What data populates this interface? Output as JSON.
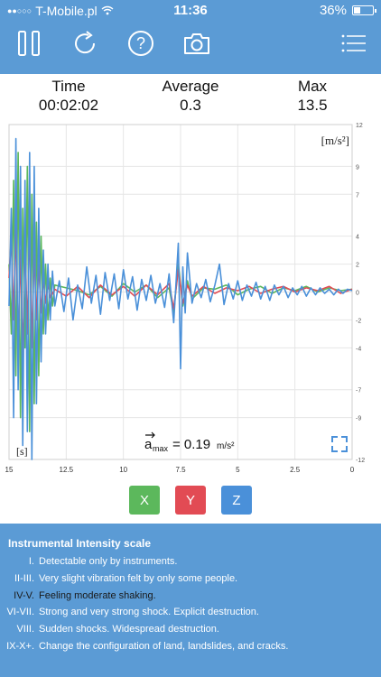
{
  "status_bar": {
    "carrier": "T-Mobile.pl",
    "time": "11:36",
    "battery": "36%",
    "battery_level": 0.36
  },
  "toolbar": {
    "icons": [
      "pause-icon",
      "refresh-icon",
      "help-icon",
      "camera-icon",
      "menu-icon"
    ]
  },
  "stats": {
    "time_label": "Time",
    "time_value": "00:02:02",
    "average_label": "Average",
    "average_value": "0.3",
    "max_label": "Max",
    "max_value": "13.5"
  },
  "chart_data": {
    "type": "line",
    "unit_y": "[m/s²]",
    "unit_x": "[s]",
    "xlim": [
      15,
      0
    ],
    "ylim": [
      -12,
      12
    ],
    "x_ticks": [
      "15",
      "12.5",
      "10",
      "7.5",
      "5",
      "2.5",
      "0"
    ],
    "y_ticks": [
      "12",
      "9",
      "7",
      "4",
      "2",
      "0",
      "-2",
      "-4",
      "-7",
      "-9",
      "-12"
    ],
    "amax_label": "a",
    "amax_sub": "max",
    "amax_value": "= 0.19",
    "amax_unit": "m/s²",
    "series": [
      {
        "name": "X",
        "color": "#5cb85c",
        "values": [
          [
            15,
            2
          ],
          [
            14.9,
            -3
          ],
          [
            14.8,
            8
          ],
          [
            14.7,
            -6
          ],
          [
            14.6,
            10
          ],
          [
            14.5,
            -9
          ],
          [
            14.4,
            6
          ],
          [
            14.3,
            -4
          ],
          [
            14.2,
            9
          ],
          [
            14.1,
            -10
          ],
          [
            14,
            7
          ],
          [
            13.9,
            -8
          ],
          [
            13.8,
            5
          ],
          [
            13.7,
            -6
          ],
          [
            13.6,
            4
          ],
          [
            13.5,
            -3
          ],
          [
            13.4,
            2
          ],
          [
            13.3,
            -2
          ],
          [
            13.2,
            1
          ],
          [
            13.1,
            -1
          ],
          [
            13,
            0.5
          ],
          [
            12.5,
            0.3
          ],
          [
            12,
            0.1
          ],
          [
            11.5,
            -0.2
          ],
          [
            11,
            0.4
          ],
          [
            10.5,
            -0.3
          ],
          [
            10,
            0.6
          ],
          [
            9.5,
            0
          ],
          [
            9,
            0.5
          ],
          [
            8.5,
            -0.4
          ],
          [
            8,
            0.3
          ],
          [
            7.8,
            -1.5
          ],
          [
            7.6,
            2
          ],
          [
            7.4,
            -1
          ],
          [
            7.2,
            0.8
          ],
          [
            7,
            -0.5
          ],
          [
            6.5,
            0.3
          ],
          [
            6,
            0.2
          ],
          [
            5.5,
            0.5
          ],
          [
            5,
            -0.2
          ],
          [
            4.5,
            0.2
          ],
          [
            4,
            0.4
          ],
          [
            3.5,
            -0.1
          ],
          [
            3,
            0.3
          ],
          [
            2.5,
            0.1
          ],
          [
            2,
            0.4
          ],
          [
            1.5,
            0
          ],
          [
            1,
            0.3
          ],
          [
            0.5,
            0.1
          ],
          [
            0,
            0.2
          ]
        ]
      },
      {
        "name": "Y",
        "color": "#e24b54",
        "values": [
          [
            15,
            1
          ],
          [
            14.9,
            4
          ],
          [
            14.8,
            -2
          ],
          [
            14.7,
            5
          ],
          [
            14.6,
            -4
          ],
          [
            14.5,
            3
          ],
          [
            14.4,
            -5
          ],
          [
            14.3,
            4
          ],
          [
            14.2,
            -3
          ],
          [
            14.1,
            5
          ],
          [
            14,
            -4
          ],
          [
            13.9,
            3
          ],
          [
            13.8,
            -2
          ],
          [
            13.7,
            2
          ],
          [
            13.6,
            -1.5
          ],
          [
            13.5,
            1
          ],
          [
            13.4,
            -0.8
          ],
          [
            13.3,
            0.6
          ],
          [
            13.2,
            -0.4
          ],
          [
            13,
            0.2
          ],
          [
            12.5,
            -0.3
          ],
          [
            12,
            0.4
          ],
          [
            11.5,
            -0.4
          ],
          [
            11,
            0.5
          ],
          [
            10.5,
            -0.2
          ],
          [
            10,
            0.4
          ],
          [
            9.5,
            -0.3
          ],
          [
            9,
            0.5
          ],
          [
            8.5,
            -0.2
          ],
          [
            8,
            0.6
          ],
          [
            7.8,
            -1.2
          ],
          [
            7.6,
            1.6
          ],
          [
            7.4,
            -0.8
          ],
          [
            7.2,
            0.5
          ],
          [
            7,
            -0.3
          ],
          [
            6.5,
            0.4
          ],
          [
            6,
            -0.1
          ],
          [
            5.5,
            0.3
          ],
          [
            5,
            0.1
          ],
          [
            4.5,
            0.4
          ],
          [
            4,
            -0.1
          ],
          [
            3.5,
            0.2
          ],
          [
            3,
            0.4
          ],
          [
            2.5,
            0
          ],
          [
            2,
            0.3
          ],
          [
            1.5,
            0.1
          ],
          [
            1,
            0.4
          ],
          [
            0.5,
            -0.1
          ],
          [
            0,
            0.2
          ]
        ]
      },
      {
        "name": "Z",
        "color": "#4a90d9",
        "values": [
          [
            15,
            -1
          ],
          [
            14.9,
            6
          ],
          [
            14.8,
            -9
          ],
          [
            14.7,
            11
          ],
          [
            14.6,
            -7
          ],
          [
            14.5,
            9
          ],
          [
            14.4,
            -11
          ],
          [
            14.3,
            8
          ],
          [
            14.2,
            -10
          ],
          [
            14.1,
            10
          ],
          [
            14,
            -12
          ],
          [
            13.9,
            9
          ],
          [
            13.8,
            -8
          ],
          [
            13.7,
            6
          ],
          [
            13.6,
            -5
          ],
          [
            13.5,
            3
          ],
          [
            13.4,
            -3
          ],
          [
            13.3,
            2
          ],
          [
            13.2,
            -2
          ],
          [
            13.1,
            1.5
          ],
          [
            13,
            -1
          ],
          [
            12.8,
            0.8
          ],
          [
            12.6,
            -1.4
          ],
          [
            12.4,
            1
          ],
          [
            12.2,
            -2
          ],
          [
            12,
            0.5
          ],
          [
            11.8,
            -1.2
          ],
          [
            11.6,
            1.8
          ],
          [
            11.4,
            -0.8
          ],
          [
            11.2,
            1.2
          ],
          [
            11,
            -1.6
          ],
          [
            10.8,
            1.4
          ],
          [
            10.6,
            -0.6
          ],
          [
            10.4,
            1.3
          ],
          [
            10.2,
            -1.2
          ],
          [
            10,
            1.6
          ],
          [
            9.8,
            -0.5
          ],
          [
            9.6,
            1.1
          ],
          [
            9.4,
            -1.3
          ],
          [
            9.2,
            0.9
          ],
          [
            9,
            -0.6
          ],
          [
            8.8,
            1.2
          ],
          [
            8.6,
            -0.8
          ],
          [
            8.4,
            0.6
          ],
          [
            8.2,
            -1.1
          ],
          [
            8,
            1.3
          ],
          [
            7.8,
            -2.2
          ],
          [
            7.6,
            3.5
          ],
          [
            7.5,
            -5.5
          ],
          [
            7.4,
            1.8
          ],
          [
            7.3,
            -1.5
          ],
          [
            7.2,
            2.8
          ],
          [
            7,
            -0.8
          ],
          [
            6.8,
            0.6
          ],
          [
            6.6,
            -0.4
          ],
          [
            6.4,
            0.9
          ],
          [
            6.2,
            -0.7
          ],
          [
            6,
            0.5
          ],
          [
            5.8,
            2
          ],
          [
            5.6,
            -0.9
          ],
          [
            5.4,
            0.6
          ],
          [
            5.2,
            -0.5
          ],
          [
            5,
            0.8
          ],
          [
            4.8,
            -0.6
          ],
          [
            4.6,
            0.5
          ],
          [
            4.4,
            -0.3
          ],
          [
            4.2,
            0.7
          ],
          [
            4,
            -0.5
          ],
          [
            3.8,
            0.4
          ],
          [
            3.6,
            -0.6
          ],
          [
            3.4,
            0.5
          ],
          [
            3.2,
            -0.2
          ],
          [
            3,
            0.4
          ],
          [
            2.8,
            -0.4
          ],
          [
            2.6,
            0.3
          ],
          [
            2.4,
            -0.2
          ],
          [
            2.2,
            0.4
          ],
          [
            2,
            -0.3
          ],
          [
            1.8,
            0.3
          ],
          [
            1.6,
            -0.2
          ],
          [
            1.4,
            0.3
          ],
          [
            1.2,
            -0.1
          ],
          [
            1,
            0.2
          ],
          [
            0.8,
            -0.2
          ],
          [
            0.6,
            0.2
          ],
          [
            0.4,
            -0.1
          ],
          [
            0.2,
            0.2
          ],
          [
            0,
            0.1
          ]
        ]
      }
    ]
  },
  "axis_buttons": [
    {
      "label": "X",
      "color": "#5cb85c"
    },
    {
      "label": "Y",
      "color": "#e24b54"
    },
    {
      "label": "Z",
      "color": "#4a90d9"
    }
  ],
  "scale": {
    "title": "Instrumental Intensity scale",
    "rows": [
      {
        "roman": "I.",
        "desc": "Detectable only by instruments."
      },
      {
        "roman": "II-III.",
        "desc": "Very slight vibration felt by only some people."
      },
      {
        "roman": "IV-V.",
        "desc": "Feeling moderate shaking."
      },
      {
        "roman": "VI-VII.",
        "desc": "Strong and very strong shock. Explicit destruction."
      },
      {
        "roman": "VIII.",
        "desc": "Sudden shocks. Widespread destruction."
      },
      {
        "roman": "IX-X+.",
        "desc": "Change the configuration of land, landslides, and cracks."
      }
    ]
  }
}
